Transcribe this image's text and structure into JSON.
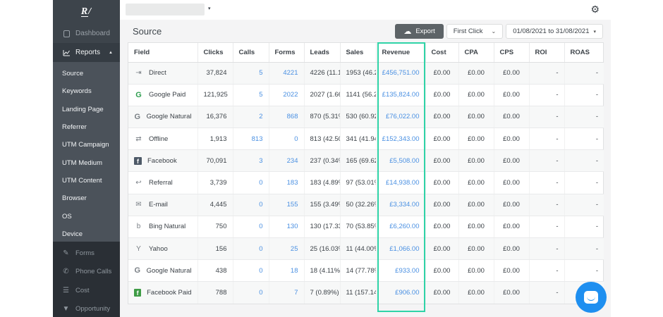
{
  "colors": {
    "accent_teal": "#2fd3a7",
    "link_blue": "#4a90e2",
    "google_green": "#2e9e4f",
    "facebook_green": "#3f9c46",
    "intercom_blue": "#1e8ff0",
    "sidebar_bg": "#3d444b"
  },
  "sidebar": {
    "logo": "R/",
    "dashboard_label": "Dashboard",
    "reports_label": "Reports",
    "report_items": [
      "Source",
      "Keywords",
      "Landing Page",
      "Referrer",
      "UTM Campaign",
      "UTM Medium",
      "UTM Content",
      "Browser",
      "OS",
      "Device"
    ],
    "tools": [
      {
        "label": "Forms",
        "icon": "pencil"
      },
      {
        "label": "Phone Calls",
        "icon": "phone"
      },
      {
        "label": "Cost",
        "icon": "cost"
      },
      {
        "label": "Opportunity",
        "icon": "funnel"
      }
    ]
  },
  "topbar": {
    "account_value": ""
  },
  "header": {
    "title": "Source",
    "export_label": "Export",
    "attribution_value": "First Click",
    "date_range": "01/08/2021 to 31/08/2021"
  },
  "table": {
    "columns": [
      "Field",
      "Clicks",
      "Calls",
      "Forms",
      "Leads",
      "Sales",
      "Revenue",
      "Cost",
      "CPA",
      "CPS",
      "ROI",
      "ROAS"
    ],
    "rows": [
      {
        "field": "Direct",
        "icon": "signin",
        "clicks": "37,824",
        "calls": "5",
        "forms": "4221",
        "leads": "4226 (11.17%)",
        "sales": "1953 (46.2...",
        "revenue": "£456,751.00",
        "cost": "£0.00",
        "cpa": "£0.00",
        "cps": "£0.00",
        "roi": "-",
        "roas": "-"
      },
      {
        "field": "Google Paid",
        "icon": "google-green",
        "clicks": "121,925",
        "calls": "5",
        "forms": "2022",
        "leads": "2027 (1.66%)",
        "sales": "1141 (56.29%)",
        "revenue": "£135,824.00",
        "cost": "£0.00",
        "cpa": "£0.00",
        "cps": "£0.00",
        "roi": "-",
        "roas": "-"
      },
      {
        "field": "Google Natural",
        "icon": "google-gray",
        "clicks": "16,376",
        "calls": "2",
        "forms": "868",
        "leads": "870 (5.31%)",
        "sales": "530 (60.92...",
        "revenue": "£76,022.00",
        "cost": "£0.00",
        "cpa": "£0.00",
        "cps": "£0.00",
        "roi": "-",
        "roas": "-"
      },
      {
        "field": "Offline",
        "icon": "offline",
        "clicks": "1,913",
        "calls": "813",
        "forms": "0",
        "leads": "813 (42.50%)",
        "sales": "341 (41.94%)",
        "revenue": "£152,343.00",
        "cost": "£0.00",
        "cpa": "£0.00",
        "cps": "£0.00",
        "roi": "-",
        "roas": "-"
      },
      {
        "field": "Facebook",
        "icon": "facebook",
        "clicks": "70,091",
        "calls": "3",
        "forms": "234",
        "leads": "237 (0.34%)",
        "sales": "165 (69.62%)",
        "revenue": "£5,508.00",
        "cost": "£0.00",
        "cpa": "£0.00",
        "cps": "£0.00",
        "roi": "-",
        "roas": "-"
      },
      {
        "field": "Referral",
        "icon": "referral",
        "clicks": "3,739",
        "calls": "0",
        "forms": "183",
        "leads": "183 (4.89%)",
        "sales": "97 (53.01%)",
        "revenue": "£14,938.00",
        "cost": "£0.00",
        "cpa": "£0.00",
        "cps": "£0.00",
        "roi": "-",
        "roas": "-"
      },
      {
        "field": "E-mail",
        "icon": "email",
        "clicks": "4,445",
        "calls": "0",
        "forms": "155",
        "leads": "155 (3.49%)",
        "sales": "50 (32.26%)",
        "revenue": "£3,334.00",
        "cost": "£0.00",
        "cpa": "£0.00",
        "cps": "£0.00",
        "roi": "-",
        "roas": "-"
      },
      {
        "field": "Bing Natural",
        "icon": "bing",
        "clicks": "750",
        "calls": "0",
        "forms": "130",
        "leads": "130 (17.33%)",
        "sales": "70 (53.85%)",
        "revenue": "£6,260.00",
        "cost": "£0.00",
        "cpa": "£0.00",
        "cps": "£0.00",
        "roi": "-",
        "roas": "-"
      },
      {
        "field": "Yahoo",
        "icon": "yahoo",
        "clicks": "156",
        "calls": "0",
        "forms": "25",
        "leads": "25 (16.03%)",
        "sales": "11 (44.00%)",
        "revenue": "£1,066.00",
        "cost": "£0.00",
        "cpa": "£0.00",
        "cps": "£0.00",
        "roi": "-",
        "roas": "-"
      },
      {
        "field": "Google Natural",
        "icon": "google-gray",
        "clicks": "438",
        "calls": "0",
        "forms": "18",
        "leads": "18 (4.11%)",
        "sales": "14 (77.78%)",
        "revenue": "£933.00",
        "cost": "£0.00",
        "cpa": "£0.00",
        "cps": "£0.00",
        "roi": "-",
        "roas": "-"
      },
      {
        "field": "Facebook Paid",
        "icon": "facebook-green",
        "clicks": "788",
        "calls": "0",
        "forms": "7",
        "leads": "7 (0.89%)",
        "sales": "11 (157.14%)",
        "revenue": "£906.00",
        "cost": "£0.00",
        "cpa": "£0.00",
        "cps": "£0.00",
        "roi": "-",
        "roas": "-"
      }
    ]
  },
  "icons": {
    "signin": "⇥",
    "google": "G",
    "offline": "⇄",
    "referral": "↩",
    "email": "✉",
    "bing": "b",
    "yahoo": "Y",
    "facebook": "f",
    "pencil": "✎",
    "phone": "✆",
    "cost": "☰",
    "funnel": "▼",
    "gear": "⚙",
    "cloud": "☁",
    "caret_up": "▲",
    "caret_down": "▾",
    "chevron_down": "⌄"
  }
}
